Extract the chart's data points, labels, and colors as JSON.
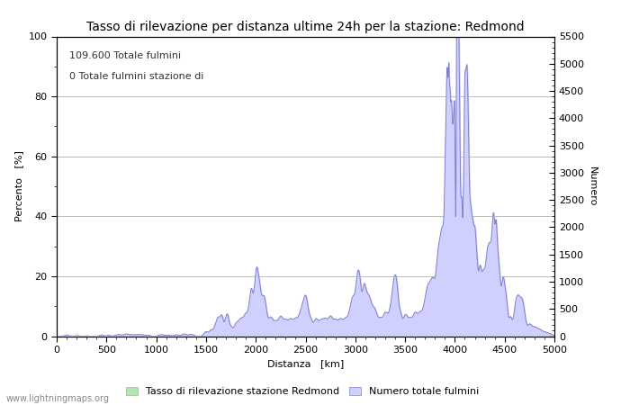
{
  "title": "Tasso di rilevazione per distanza ultime 24h per la stazione: Redmond",
  "xlabel": "Distanza   [km]",
  "ylabel_left": "Percento   [%]",
  "ylabel_right": "Numero",
  "annotation_line1": "109.600 Totale fulmini",
  "annotation_line2": "0 Totale fulmini stazione di",
  "legend_label1": "Tasso di rilevazione stazione Redmond",
  "legend_label2": "Numero totale fulmini",
  "watermark": "www.lightningmaps.org",
  "xlim": [
    0,
    5000
  ],
  "ylim_left": [
    0,
    100
  ],
  "ylim_right": [
    0,
    5500
  ],
  "xticks": [
    0,
    500,
    1000,
    1500,
    2000,
    2500,
    3000,
    3500,
    4000,
    4500,
    5000
  ],
  "yticks_left": [
    0,
    20,
    40,
    60,
    80,
    100
  ],
  "yticks_right": [
    0,
    500,
    1000,
    1500,
    2000,
    2500,
    3000,
    3500,
    4000,
    4500,
    5000,
    5500
  ],
  "fill_color_blue": "#d0d0ff",
  "line_color_blue": "#8080cc",
  "fill_color_green": "#b0e8b0",
  "background_color": "#ffffff",
  "grid_color": "#bbbbbb",
  "title_fontsize": 10,
  "label_fontsize": 8,
  "tick_fontsize": 8,
  "annotation_fontsize": 8
}
